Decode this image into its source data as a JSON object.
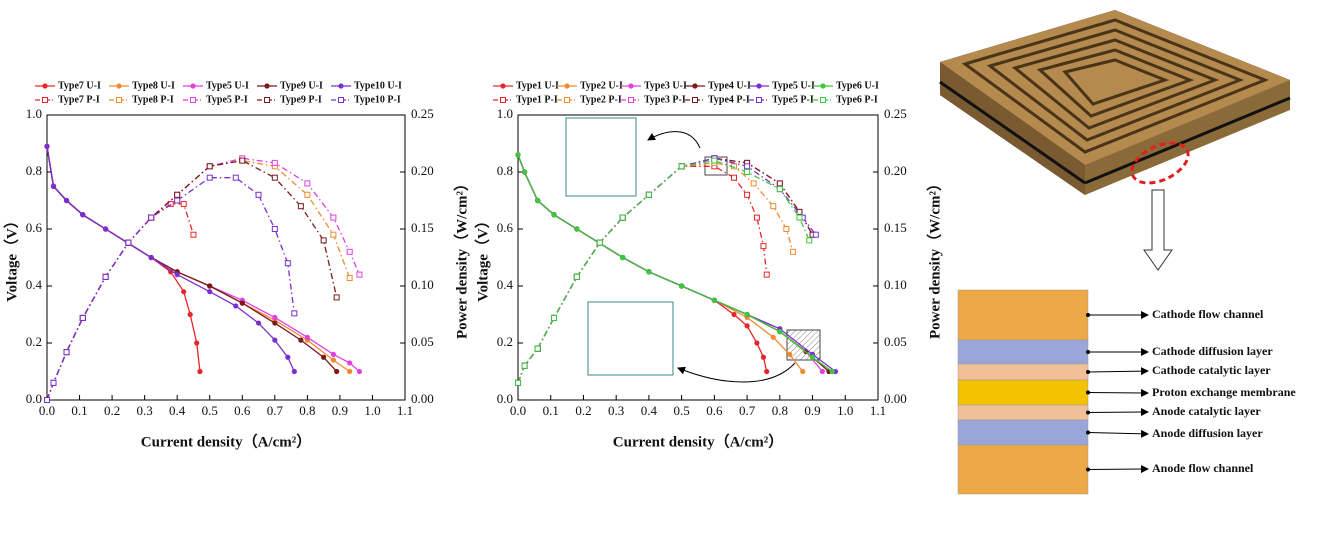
{
  "chart_data": [
    {
      "type": "line",
      "xlabel": "Current density（A/cm²）",
      "ylabel": "Voltage（V）",
      "y2label": "Power density（W/cm²）",
      "xlim": [
        0,
        1.1
      ],
      "xticks": [
        {
          "value": 0,
          "label": "0.0"
        },
        0.1,
        0.2,
        0.3,
        0.4,
        0.5,
        0.6,
        0.7,
        0.8,
        0.9,
        {
          "value": 1,
          "label": "1.0"
        },
        1.1
      ],
      "ylim": [
        0,
        1
      ],
      "yticks": [
        {
          "value": 0,
          "label": "0.0"
        },
        0.2,
        0.4,
        0.6,
        0.8,
        {
          "value": 1,
          "label": "1.0"
        }
      ],
      "y2lim": [
        0,
        0.25
      ],
      "y2ticks": [
        {
          "value": 0,
          "label": "0.00"
        },
        0.05,
        {
          "value": 0.1,
          "label": "0.10"
        },
        0.15,
        {
          "value": 0.2,
          "label": "0.20"
        },
        0.25
      ],
      "series": [
        {
          "name": "Type7 U-I",
          "color": "#e8262a",
          "line_style": "solid",
          "marker": "filled-circle",
          "x": [
            0,
            0.02,
            0.06,
            0.11,
            0.18,
            0.25,
            0.32,
            0.38,
            0.42,
            0.44,
            0.46,
            0.47
          ],
          "values": [
            0.89,
            0.75,
            0.7,
            0.65,
            0.6,
            0.55,
            0.5,
            0.45,
            0.38,
            0.3,
            0.2,
            0.1
          ]
        },
        {
          "name": "Type7 P-I",
          "color": "#e8262a",
          "line_style": "dashdot",
          "marker": "open-square",
          "axis": "y2",
          "x": [
            0,
            0.02,
            0.06,
            0.11,
            0.18,
            0.25,
            0.32,
            0.38,
            0.42,
            0.45
          ],
          "values": [
            0,
            0.015,
            0.042,
            0.072,
            0.108,
            0.138,
            0.16,
            0.172,
            0.172,
            0.145
          ]
        },
        {
          "name": "Type8 U-I",
          "color": "#f08a30",
          "line_style": "solid",
          "marker": "filled-circle",
          "x": [
            0,
            0.02,
            0.06,
            0.11,
            0.18,
            0.25,
            0.32,
            0.4,
            0.5,
            0.6,
            0.7,
            0.8,
            0.88,
            0.93
          ],
          "values": [
            0.89,
            0.75,
            0.7,
            0.65,
            0.6,
            0.55,
            0.5,
            0.45,
            0.4,
            0.34,
            0.28,
            0.21,
            0.14,
            0.1
          ]
        },
        {
          "name": "Type8 P-I",
          "color": "#f08a30",
          "line_style": "dashdot",
          "marker": "open-square",
          "axis": "y2",
          "x": [
            0,
            0.02,
            0.06,
            0.11,
            0.18,
            0.25,
            0.32,
            0.4,
            0.5,
            0.6,
            0.7,
            0.8,
            0.88,
            0.93
          ],
          "values": [
            0,
            0.015,
            0.042,
            0.072,
            0.108,
            0.138,
            0.16,
            0.18,
            0.205,
            0.21,
            0.205,
            0.18,
            0.145,
            0.107
          ]
        },
        {
          "name": "Type5 U-I",
          "color": "#e040e0",
          "line_style": "solid",
          "marker": "filled-circle",
          "x": [
            0,
            0.02,
            0.06,
            0.11,
            0.18,
            0.25,
            0.32,
            0.4,
            0.5,
            0.6,
            0.7,
            0.8,
            0.88,
            0.93,
            0.96
          ],
          "values": [
            0.89,
            0.75,
            0.7,
            0.65,
            0.6,
            0.55,
            0.5,
            0.45,
            0.4,
            0.35,
            0.29,
            0.22,
            0.16,
            0.13,
            0.1
          ]
        },
        {
          "name": "Type5 P-I",
          "color": "#e040e0",
          "line_style": "dashdot",
          "marker": "open-square",
          "axis": "y2",
          "x": [
            0,
            0.02,
            0.06,
            0.11,
            0.18,
            0.25,
            0.32,
            0.4,
            0.5,
            0.6,
            0.7,
            0.8,
            0.88,
            0.93,
            0.96
          ],
          "values": [
            0,
            0.015,
            0.042,
            0.072,
            0.108,
            0.138,
            0.16,
            0.18,
            0.205,
            0.212,
            0.208,
            0.19,
            0.16,
            0.13,
            0.11
          ]
        },
        {
          "name": "Type9 U-I",
          "color": "#7a1a1a",
          "line_style": "solid",
          "marker": "filled-circle",
          "x": [
            0,
            0.02,
            0.06,
            0.11,
            0.18,
            0.25,
            0.32,
            0.4,
            0.5,
            0.6,
            0.7,
            0.78,
            0.85,
            0.89
          ],
          "values": [
            0.89,
            0.75,
            0.7,
            0.65,
            0.6,
            0.55,
            0.5,
            0.45,
            0.4,
            0.34,
            0.27,
            0.21,
            0.15,
            0.1
          ]
        },
        {
          "name": "Type9 P-I",
          "color": "#7a1a1a",
          "line_style": "dashdot",
          "marker": "open-square",
          "axis": "y2",
          "x": [
            0,
            0.02,
            0.06,
            0.11,
            0.18,
            0.25,
            0.32,
            0.4,
            0.5,
            0.6,
            0.7,
            0.78,
            0.85,
            0.89
          ],
          "values": [
            0,
            0.015,
            0.042,
            0.072,
            0.108,
            0.138,
            0.16,
            0.18,
            0.205,
            0.21,
            0.195,
            0.17,
            0.14,
            0.09
          ]
        },
        {
          "name": "Type10 U-I",
          "color": "#7a30d0",
          "line_style": "solid",
          "marker": "filled-circle",
          "x": [
            0,
            0.02,
            0.06,
            0.11,
            0.18,
            0.25,
            0.32,
            0.4,
            0.5,
            0.58,
            0.65,
            0.7,
            0.74,
            0.76
          ],
          "values": [
            0.89,
            0.75,
            0.7,
            0.65,
            0.6,
            0.55,
            0.5,
            0.44,
            0.38,
            0.33,
            0.27,
            0.21,
            0.15,
            0.1
          ]
        },
        {
          "name": "Type10 P-I",
          "color": "#7a30d0",
          "line_style": "dashdot",
          "marker": "open-square",
          "axis": "y2",
          "x": [
            0,
            0.02,
            0.06,
            0.11,
            0.18,
            0.25,
            0.32,
            0.4,
            0.5,
            0.58,
            0.65,
            0.7,
            0.74,
            0.76
          ],
          "values": [
            0,
            0.015,
            0.042,
            0.072,
            0.108,
            0.138,
            0.16,
            0.175,
            0.195,
            0.195,
            0.18,
            0.15,
            0.12,
            0.076
          ]
        }
      ]
    },
    {
      "type": "line",
      "xlabel": "Current density（A/cm²）",
      "ylabel": "Voltage（V）",
      "y2label": "Power density（W/cm²）",
      "xlim": [
        0,
        1.1
      ],
      "xticks": [
        {
          "value": 0,
          "label": "0.0"
        },
        0.1,
        0.2,
        0.3,
        0.4,
        0.5,
        0.6,
        0.7,
        0.8,
        0.9,
        {
          "value": 1,
          "label": "1.0"
        },
        1.1
      ],
      "ylim": [
        0,
        1
      ],
      "yticks": [
        {
          "value": 0,
          "label": "0.0"
        },
        0.2,
        0.4,
        0.6,
        0.8,
        {
          "value": 1,
          "label": "1.0"
        }
      ],
      "y2lim": [
        0,
        0.25
      ],
      "y2ticks": [
        {
          "value": 0,
          "label": "0.00"
        },
        0.05,
        {
          "value": 0.1,
          "label": "0.10"
        },
        0.15,
        {
          "value": 0.2,
          "label": "0.20"
        },
        0.25
      ],
      "series": [
        {
          "name": "Type1 U-I",
          "color": "#e8262a",
          "line_style": "solid",
          "marker": "filled-circle",
          "x": [
            0,
            0.02,
            0.06,
            0.11,
            0.18,
            0.25,
            0.32,
            0.4,
            0.5,
            0.6,
            0.66,
            0.7,
            0.73,
            0.75,
            0.76
          ],
          "values": [
            0.86,
            0.8,
            0.7,
            0.65,
            0.6,
            0.55,
            0.5,
            0.45,
            0.4,
            0.35,
            0.3,
            0.26,
            0.2,
            0.15,
            0.1
          ]
        },
        {
          "name": "Type1 P-I",
          "color": "#e8262a",
          "line_style": "dashdot",
          "marker": "open-square",
          "axis": "y2",
          "x": [
            0,
            0.02,
            0.06,
            0.11,
            0.18,
            0.25,
            0.32,
            0.4,
            0.5,
            0.6,
            0.66,
            0.7,
            0.73,
            0.75,
            0.76
          ],
          "values": [
            0.015,
            0.03,
            0.045,
            0.072,
            0.108,
            0.138,
            0.16,
            0.18,
            0.205,
            0.205,
            0.195,
            0.18,
            0.16,
            0.135,
            0.11
          ]
        },
        {
          "name": "Type2 U-I",
          "color": "#f08a30",
          "line_style": "solid",
          "marker": "filled-circle",
          "x": [
            0,
            0.02,
            0.06,
            0.11,
            0.18,
            0.25,
            0.32,
            0.4,
            0.5,
            0.6,
            0.7,
            0.78,
            0.83,
            0.87
          ],
          "values": [
            0.86,
            0.8,
            0.7,
            0.65,
            0.6,
            0.55,
            0.5,
            0.45,
            0.4,
            0.35,
            0.29,
            0.22,
            0.16,
            0.1
          ]
        },
        {
          "name": "Type2 P-I",
          "color": "#f08a30",
          "line_style": "dashdot",
          "marker": "open-square",
          "axis": "y2",
          "x": [
            0,
            0.02,
            0.06,
            0.11,
            0.18,
            0.25,
            0.32,
            0.4,
            0.5,
            0.6,
            0.66,
            0.72,
            0.78,
            0.82,
            0.84
          ],
          "values": [
            0.015,
            0.03,
            0.045,
            0.072,
            0.108,
            0.138,
            0.16,
            0.18,
            0.205,
            0.208,
            0.205,
            0.19,
            0.17,
            0.15,
            0.13
          ]
        },
        {
          "name": "Type3 U-I",
          "color": "#e040e0",
          "line_style": "solid",
          "marker": "filled-circle",
          "x": [
            0,
            0.02,
            0.06,
            0.11,
            0.18,
            0.25,
            0.32,
            0.4,
            0.5,
            0.6,
            0.7,
            0.8,
            0.88,
            0.93
          ],
          "values": [
            0.86,
            0.8,
            0.7,
            0.65,
            0.6,
            0.55,
            0.5,
            0.45,
            0.4,
            0.35,
            0.3,
            0.24,
            0.17,
            0.1
          ]
        },
        {
          "name": "Type3 P-I",
          "color": "#e040e0",
          "line_style": "dashdot",
          "marker": "open-square",
          "axis": "y2",
          "x": [
            0,
            0.02,
            0.06,
            0.11,
            0.18,
            0.25,
            0.32,
            0.4,
            0.5,
            0.6,
            0.7,
            0.8,
            0.86,
            0.9
          ],
          "values": [
            0.015,
            0.03,
            0.045,
            0.072,
            0.108,
            0.138,
            0.16,
            0.18,
            0.205,
            0.212,
            0.208,
            0.19,
            0.165,
            0.145
          ]
        },
        {
          "name": "Type4 U-I",
          "color": "#7a1a1a",
          "line_style": "solid",
          "marker": "filled-circle",
          "x": [
            0,
            0.02,
            0.06,
            0.11,
            0.18,
            0.25,
            0.32,
            0.4,
            0.5,
            0.6,
            0.7,
            0.8,
            0.88,
            0.95
          ],
          "values": [
            0.86,
            0.8,
            0.7,
            0.65,
            0.6,
            0.55,
            0.5,
            0.45,
            0.4,
            0.35,
            0.3,
            0.24,
            0.17,
            0.1
          ]
        },
        {
          "name": "Type4 P-I",
          "color": "#7a1a1a",
          "line_style": "dashdot",
          "marker": "open-square",
          "axis": "y2",
          "x": [
            0,
            0.02,
            0.06,
            0.11,
            0.18,
            0.25,
            0.32,
            0.4,
            0.5,
            0.6,
            0.7,
            0.8,
            0.86,
            0.9
          ],
          "values": [
            0.015,
            0.03,
            0.045,
            0.072,
            0.108,
            0.138,
            0.16,
            0.18,
            0.205,
            0.212,
            0.208,
            0.19,
            0.165,
            0.145
          ]
        },
        {
          "name": "Type5 U-I",
          "color": "#7a30d0",
          "line_style": "solid",
          "marker": "filled-circle",
          "x": [
            0,
            0.02,
            0.06,
            0.11,
            0.18,
            0.25,
            0.32,
            0.4,
            0.5,
            0.6,
            0.7,
            0.8,
            0.9,
            0.97
          ],
          "values": [
            0.86,
            0.8,
            0.7,
            0.65,
            0.6,
            0.55,
            0.5,
            0.45,
            0.4,
            0.35,
            0.3,
            0.25,
            0.16,
            0.1
          ]
        },
        {
          "name": "Type5 P-I",
          "color": "#7a30d0",
          "line_style": "dashdot",
          "marker": "open-square",
          "axis": "y2",
          "x": [
            0,
            0.02,
            0.06,
            0.11,
            0.18,
            0.25,
            0.32,
            0.4,
            0.5,
            0.6,
            0.7,
            0.8,
            0.87,
            0.91
          ],
          "values": [
            0.015,
            0.03,
            0.045,
            0.072,
            0.108,
            0.138,
            0.16,
            0.18,
            0.205,
            0.212,
            0.205,
            0.185,
            0.16,
            0.145
          ]
        },
        {
          "name": "Type6 U-I",
          "color": "#3cc83c",
          "line_style": "solid",
          "marker": "filled-circle",
          "x": [
            0,
            0.02,
            0.06,
            0.11,
            0.18,
            0.25,
            0.32,
            0.4,
            0.5,
            0.6,
            0.7,
            0.8,
            0.9,
            0.96
          ],
          "values": [
            0.86,
            0.8,
            0.7,
            0.65,
            0.6,
            0.55,
            0.5,
            0.45,
            0.4,
            0.35,
            0.3,
            0.24,
            0.15,
            0.1
          ]
        },
        {
          "name": "Type6 P-I",
          "color": "#3cc83c",
          "line_style": "dashdot",
          "marker": "open-square",
          "axis": "y2",
          "x": [
            0,
            0.02,
            0.06,
            0.11,
            0.18,
            0.25,
            0.32,
            0.4,
            0.5,
            0.6,
            0.7,
            0.8,
            0.86,
            0.89
          ],
          "values": [
            0.015,
            0.03,
            0.045,
            0.072,
            0.108,
            0.138,
            0.16,
            0.18,
            0.205,
            0.21,
            0.2,
            0.185,
            0.16,
            0.14
          ]
        }
      ]
    }
  ],
  "diagram": {
    "layers": [
      {
        "label": "Cathode flow channel",
        "color": "#eda848"
      },
      {
        "label": "Cathode diffusion layer",
        "color": "#9aa6d8"
      },
      {
        "label": "Cathode catalytic layer",
        "color": "#f2c098"
      },
      {
        "label": "Proton exchange membrane",
        "color": "#f3c200"
      },
      {
        "label": "Anode catalytic layer",
        "color": "#f2c098"
      },
      {
        "label": "Anode diffusion layer",
        "color": "#9aa6d8"
      },
      {
        "label": "Anode flow channel",
        "color": "#eda848"
      }
    ]
  }
}
